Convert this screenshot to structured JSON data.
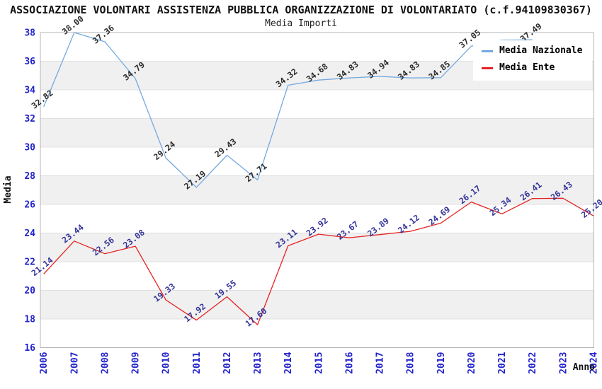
{
  "header": {
    "title": "ASSOCIAZIONE VOLONTARI ASSISTENZA PUBBLICA ORGANIZZAZIONE DI VOLONTARIATO (c.f.94109830367)",
    "subtitle": "Media Importi"
  },
  "legend": {
    "items": [
      {
        "label": "Media Nazionale",
        "color": "#74a9e0"
      },
      {
        "label": "Media Ente",
        "color": "#e62222"
      }
    ]
  },
  "chart_data": {
    "type": "line",
    "x": [
      2006,
      2007,
      2008,
      2009,
      2010,
      2011,
      2012,
      2013,
      2014,
      2015,
      2016,
      2017,
      2018,
      2019,
      2020,
      2021,
      2022,
      2023,
      2024
    ],
    "series": [
      {
        "name": "Media Nazionale",
        "color": "#74a9e0",
        "label_color": "#2b2b2b",
        "values": [
          32.82,
          38.0,
          37.36,
          34.79,
          29.24,
          27.19,
          29.43,
          27.71,
          34.32,
          34.68,
          34.83,
          34.94,
          34.83,
          34.85,
          37.05,
          37.46,
          37.49,
          null,
          null
        ],
        "label_skip": [
          15
        ]
      },
      {
        "name": "Media Ente",
        "color": "#e62222",
        "label_color": "#333399",
        "values": [
          21.14,
          23.44,
          22.56,
          23.08,
          19.33,
          17.92,
          19.55,
          17.6,
          23.11,
          23.92,
          23.67,
          23.89,
          24.12,
          24.69,
          26.17,
          25.34,
          26.41,
          26.43,
          25.2
        ],
        "label_skip": []
      }
    ],
    "xlabel": "Anno",
    "ylabel": "Media",
    "ylim": [
      16,
      38
    ],
    "ytick_step": 2,
    "legend_position": "top-right-inside",
    "grid": "banded",
    "colors": {
      "tick_label": "#2222cc",
      "band": "#f0f0f0",
      "grid_line": "#e0e0e0",
      "plot_border": "#b4b4b4",
      "axis_title": "#111111"
    }
  }
}
